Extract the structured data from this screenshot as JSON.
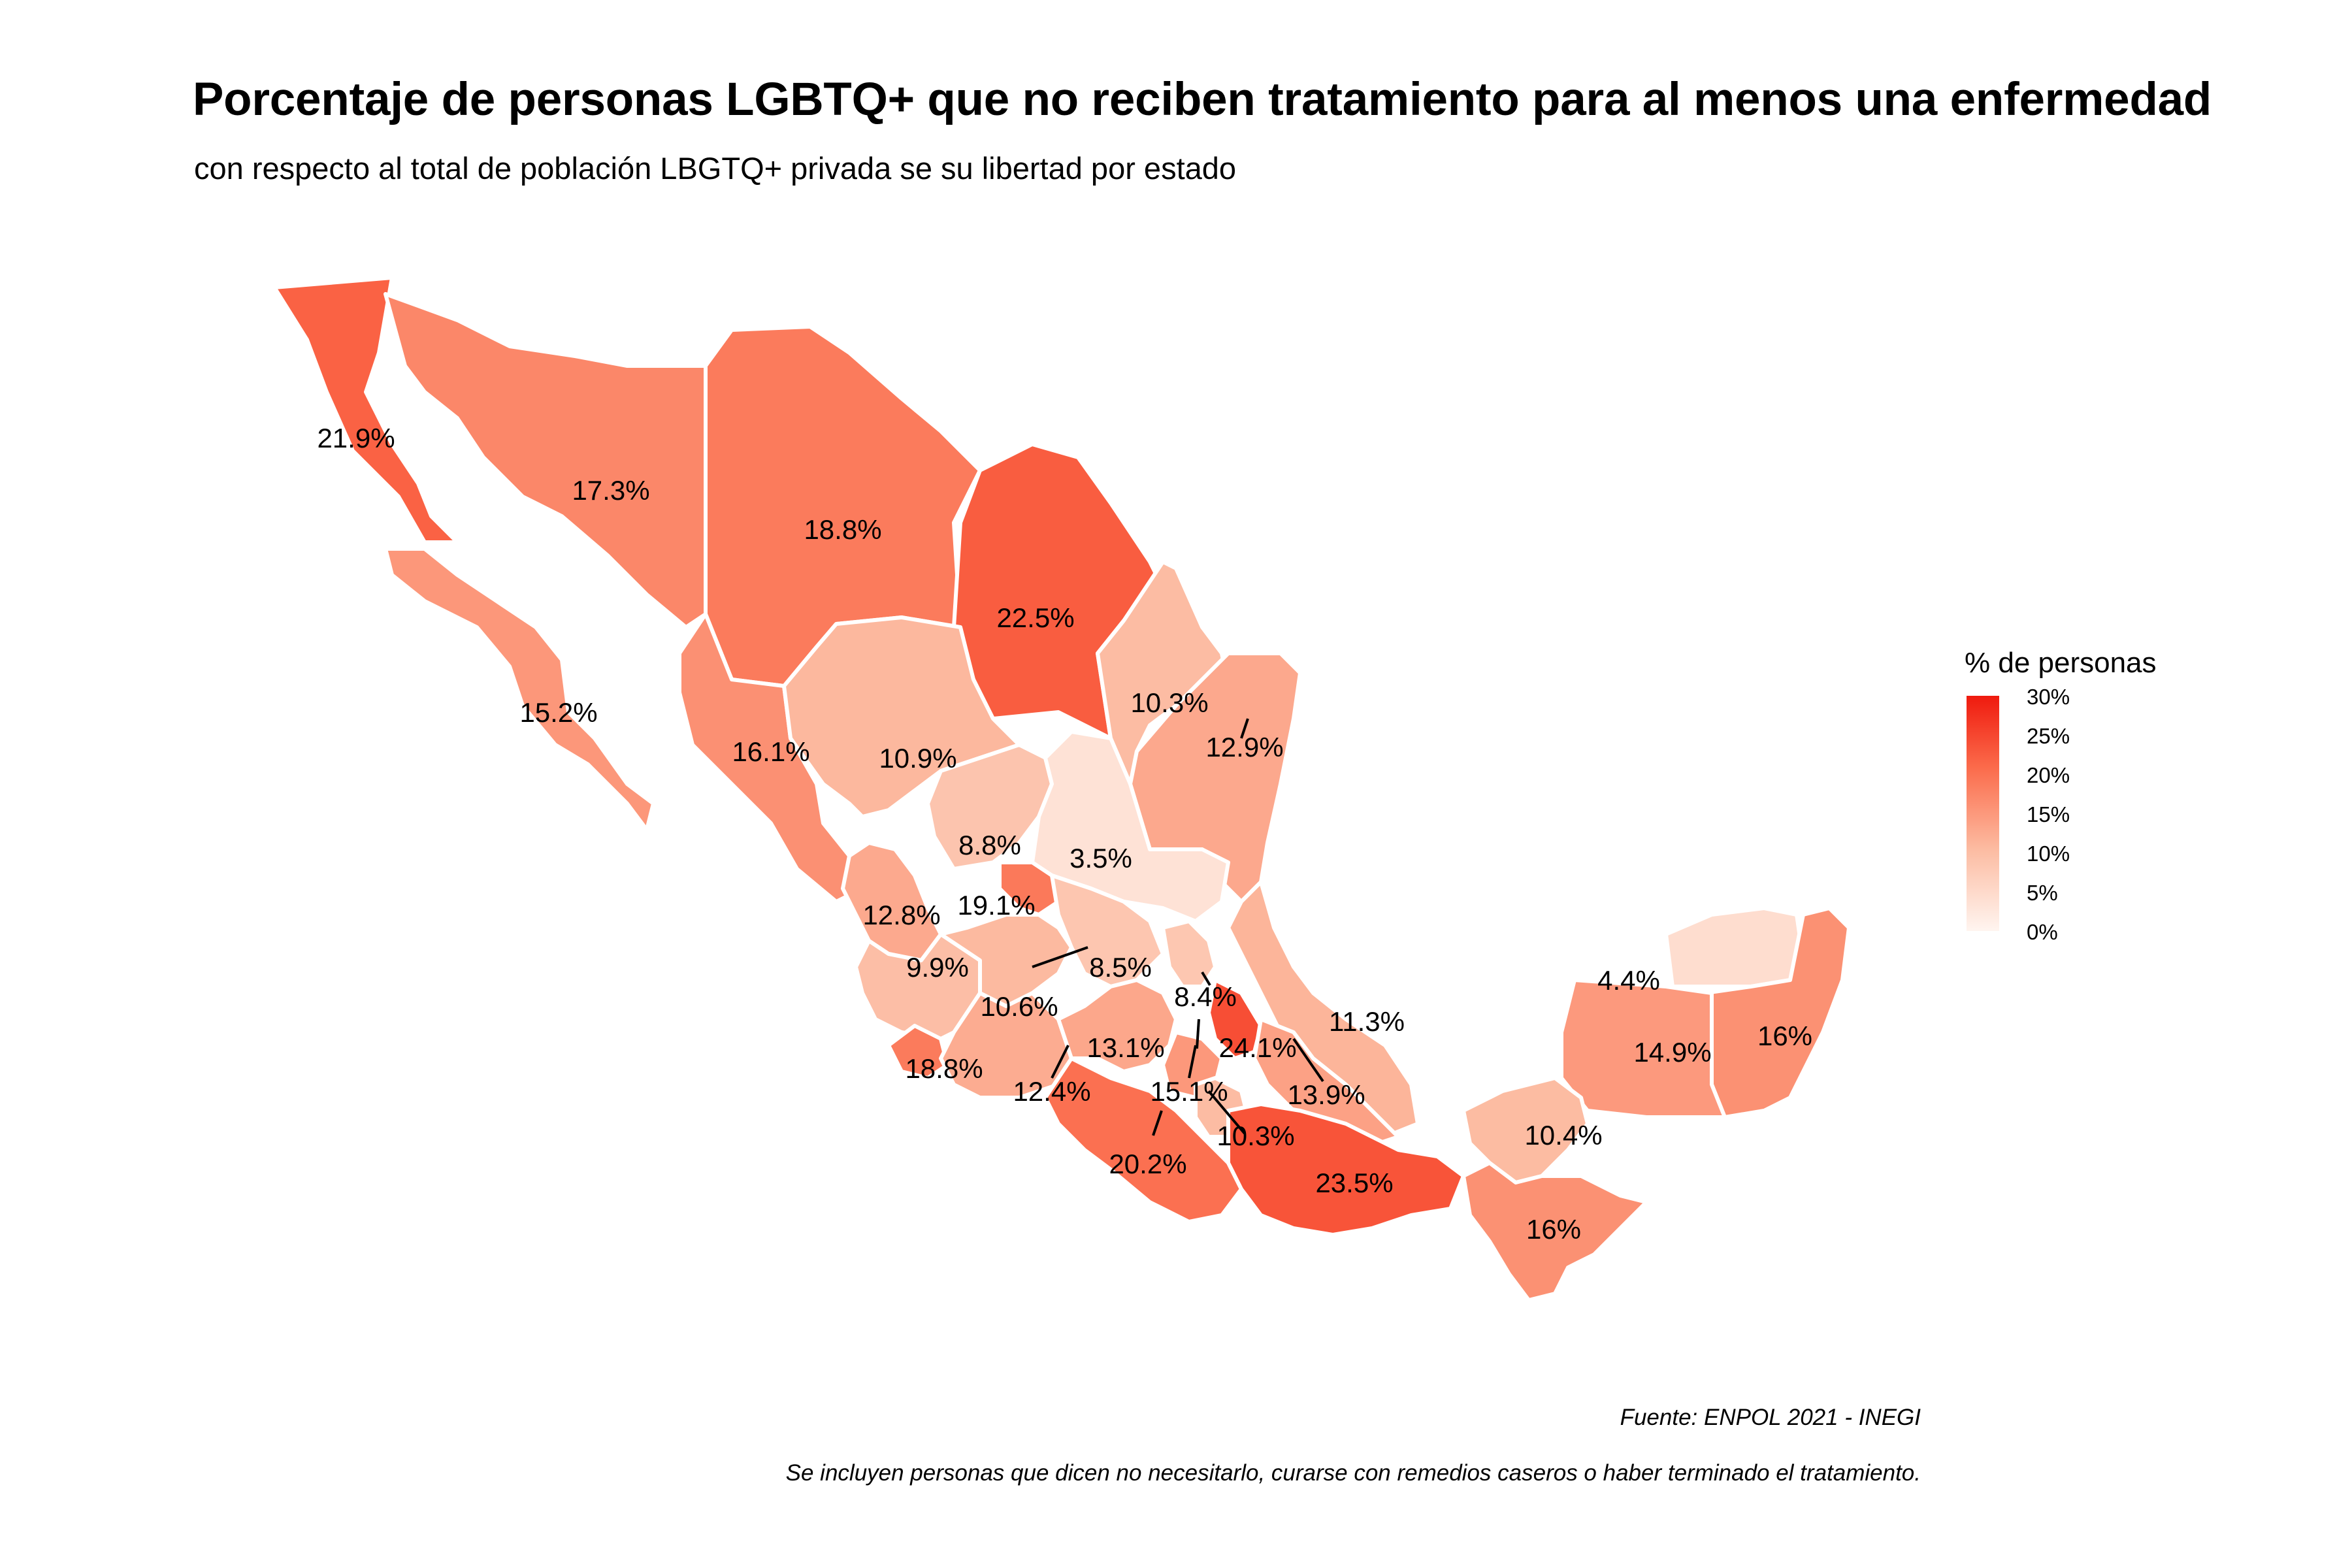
{
  "title": "Porcentaje de personas LGBTQ+ que no reciben tratamiento para al menos una enfermedad",
  "subtitle": "con respecto al total de población LBGTQ+ privada se su libertad por estado",
  "legend": {
    "title": "% de personas",
    "ticks": [
      "30%",
      "25%",
      "20%",
      "15%",
      "10%",
      "5%",
      "0%"
    ],
    "low_color": "#fff5f0",
    "high_color": "#ef1a0e"
  },
  "caption": {
    "source": "Fuente: ENPOL 2021 - INEGI",
    "note": "Se incluyen personas que dicen no necesitarlo, curarse con remedios caseros o haber terminado el tratamiento."
  },
  "chart_data": {
    "type": "choropleth",
    "value_unit": "%",
    "scale_range": [
      0,
      30
    ],
    "labels": [
      "21.9%",
      "17.3%",
      "18.8%",
      "22.5%",
      "15.2%",
      "16.1%",
      "10.9%",
      "10.3%",
      "12.9%",
      "8.8%",
      "3.5%",
      "19.1%",
      "12.8%",
      "9.9%",
      "8.5%",
      "10.6%",
      "8.4%",
      "11.3%",
      "4.4%",
      "16%",
      "14.9%",
      "18.8%",
      "12.4%",
      "13.1%",
      "24.1%",
      "13.9%",
      "15.1%",
      "10.3%",
      "20.2%",
      "23.5%",
      "10.4%",
      "16%"
    ],
    "values": [
      21.9,
      17.3,
      18.8,
      22.5,
      15.2,
      16.1,
      10.9,
      10.3,
      12.9,
      8.8,
      3.5,
      19.1,
      12.8,
      9.9,
      8.5,
      10.6,
      8.4,
      11.3,
      4.4,
      16,
      14.9,
      18.8,
      12.4,
      13.1,
      24.1,
      13.9,
      15.1,
      10.3,
      20.2,
      23.5,
      10.4,
      16
    ]
  }
}
